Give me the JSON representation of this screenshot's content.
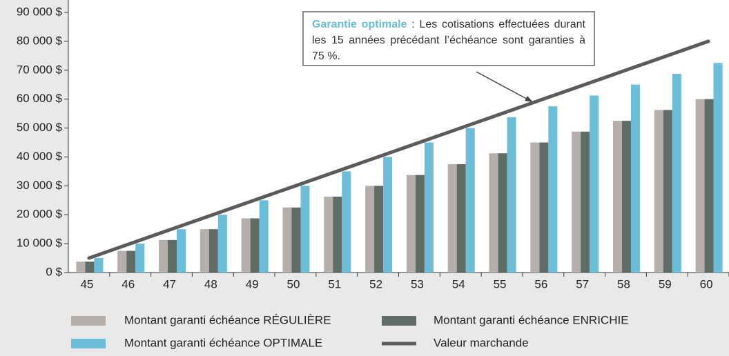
{
  "chart_data": {
    "type": "bar",
    "categories": [
      "45",
      "46",
      "47",
      "48",
      "49",
      "50",
      "51",
      "52",
      "53",
      "54",
      "55",
      "56",
      "57",
      "58",
      "59",
      "60"
    ],
    "series": [
      {
        "name": "Montant garanti échéance RÉGULIÈRE",
        "color": "#b5afab",
        "values": [
          3750,
          7500,
          11250,
          15000,
          18750,
          22500,
          26250,
          30000,
          33750,
          37500,
          41250,
          45000,
          48750,
          52500,
          56250,
          60000
        ]
      },
      {
        "name": "Montant garanti échéance ENRICHIE",
        "color": "#5f6d66",
        "values": [
          3750,
          7500,
          11250,
          15000,
          18750,
          22500,
          26250,
          30000,
          33750,
          37500,
          41250,
          45000,
          48750,
          52500,
          56250,
          60000
        ]
      },
      {
        "name": "Montant garanti échéance OPTIMALE",
        "color": "#6cbdd7",
        "values": [
          5000,
          10000,
          15000,
          20000,
          25000,
          30000,
          35000,
          40000,
          45000,
          50000,
          53750,
          57500,
          61250,
          65000,
          68750,
          72500
        ]
      },
      {
        "name": "Valeur marchande",
        "type": "line",
        "color": "#5b5b5b",
        "values": [
          5000,
          10000,
          15000,
          20000,
          25000,
          30000,
          35000,
          40000,
          45000,
          50000,
          55000,
          60000,
          65000,
          70000,
          75000,
          80000
        ]
      }
    ],
    "ylim": [
      0,
      90000
    ],
    "yticks": [
      {
        "value": 0,
        "label": "0 $"
      },
      {
        "value": 10000,
        "label": "10 000 $"
      },
      {
        "value": 20000,
        "label": "20 000 $"
      },
      {
        "value": 30000,
        "label": "30 000 $"
      },
      {
        "value": 40000,
        "label": "40 000 $"
      },
      {
        "value": 50000,
        "label": "50 000 $"
      },
      {
        "value": 60000,
        "label": "60 000 $"
      },
      {
        "value": 70000,
        "label": "70 000 $"
      },
      {
        "value": 80000,
        "label": "80 000 $"
      },
      {
        "value": 90000,
        "label": "90 000 $"
      }
    ],
    "annotation": {
      "title": "Garantie optimale",
      "text": ": Les cotisations effectuées durant les 15 années précédant l’échéance sont garanties à 75 %."
    }
  }
}
